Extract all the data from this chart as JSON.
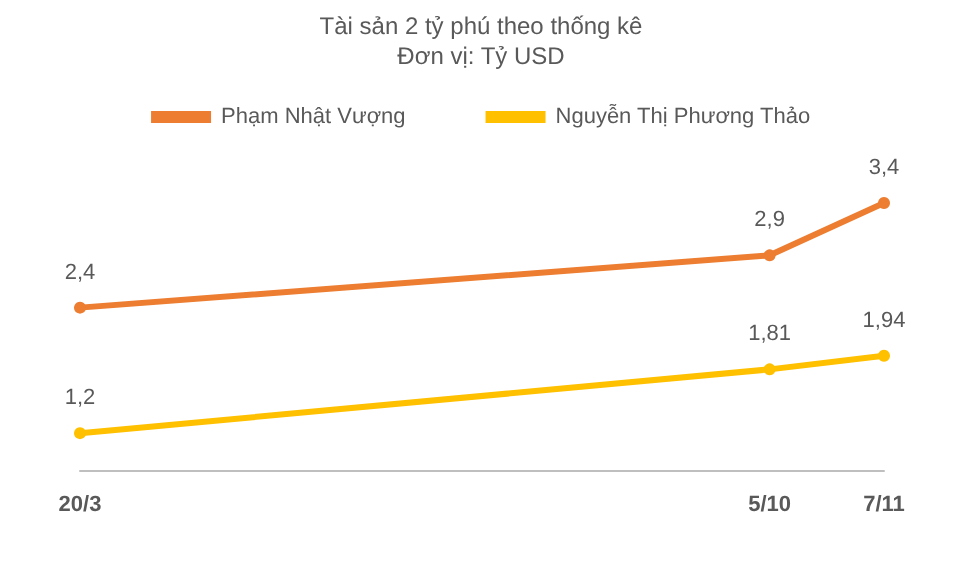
{
  "chart_data": {
    "type": "line",
    "title": "Tài sản 2 tỷ phú theo thống kê",
    "subtitle": "Đơn vị: Tỷ USD",
    "x": [
      "--03-20",
      "--10-05",
      "--11-07"
    ],
    "xlim": [
      "--03-20",
      "--11-07"
    ],
    "xticks": [
      {
        "value": "--03-20",
        "label": "20/3"
      },
      {
        "value": "--10-05",
        "label": "5/10"
      },
      {
        "value": "--11-07",
        "label": "7/11"
      }
    ],
    "tick_labels": "x",
    "series": [
      {
        "name": "Phạm Nhật Vượng",
        "color": "#ed7d31",
        "values": [
          2.4,
          2.9,
          3.4
        ],
        "value_labels": [
          "2,4",
          "2,9",
          "3,4"
        ]
      },
      {
        "name": "Nguyễn Thị Phương Thảo",
        "color": "#ffc000",
        "values": [
          1.2,
          1.81,
          1.94
        ],
        "value_labels": [
          "1,2",
          "1,81",
          "1,94"
        ]
      }
    ],
    "legend": "top",
    "marker": "circle",
    "line_style": "solid",
    "grid": false
  }
}
